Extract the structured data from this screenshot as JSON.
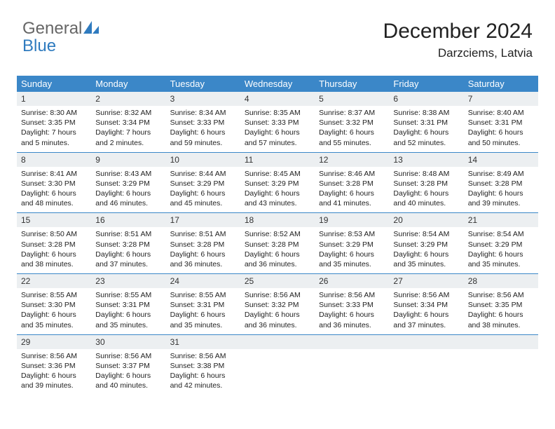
{
  "brand": {
    "word1": "General",
    "word2": "Blue"
  },
  "title": {
    "month": "December 2024",
    "location": "Darzciems, Latvia"
  },
  "colors": {
    "header_bg": "#3b87c8",
    "header_text": "#ffffff",
    "daynum_bg": "#eceff1",
    "border": "#3b87c8",
    "logo_gray": "#666666",
    "logo_blue": "#2f7bbf",
    "text": "#222222"
  },
  "weekdays": [
    "Sunday",
    "Monday",
    "Tuesday",
    "Wednesday",
    "Thursday",
    "Friday",
    "Saturday"
  ],
  "weeks": [
    [
      {
        "n": "1",
        "sr": "8:30 AM",
        "ss": "3:35 PM",
        "dl": "7 hours and 5 minutes."
      },
      {
        "n": "2",
        "sr": "8:32 AM",
        "ss": "3:34 PM",
        "dl": "7 hours and 2 minutes."
      },
      {
        "n": "3",
        "sr": "8:34 AM",
        "ss": "3:33 PM",
        "dl": "6 hours and 59 minutes."
      },
      {
        "n": "4",
        "sr": "8:35 AM",
        "ss": "3:33 PM",
        "dl": "6 hours and 57 minutes."
      },
      {
        "n": "5",
        "sr": "8:37 AM",
        "ss": "3:32 PM",
        "dl": "6 hours and 55 minutes."
      },
      {
        "n": "6",
        "sr": "8:38 AM",
        "ss": "3:31 PM",
        "dl": "6 hours and 52 minutes."
      },
      {
        "n": "7",
        "sr": "8:40 AM",
        "ss": "3:31 PM",
        "dl": "6 hours and 50 minutes."
      }
    ],
    [
      {
        "n": "8",
        "sr": "8:41 AM",
        "ss": "3:30 PM",
        "dl": "6 hours and 48 minutes."
      },
      {
        "n": "9",
        "sr": "8:43 AM",
        "ss": "3:29 PM",
        "dl": "6 hours and 46 minutes."
      },
      {
        "n": "10",
        "sr": "8:44 AM",
        "ss": "3:29 PM",
        "dl": "6 hours and 45 minutes."
      },
      {
        "n": "11",
        "sr": "8:45 AM",
        "ss": "3:29 PM",
        "dl": "6 hours and 43 minutes."
      },
      {
        "n": "12",
        "sr": "8:46 AM",
        "ss": "3:28 PM",
        "dl": "6 hours and 41 minutes."
      },
      {
        "n": "13",
        "sr": "8:48 AM",
        "ss": "3:28 PM",
        "dl": "6 hours and 40 minutes."
      },
      {
        "n": "14",
        "sr": "8:49 AM",
        "ss": "3:28 PM",
        "dl": "6 hours and 39 minutes."
      }
    ],
    [
      {
        "n": "15",
        "sr": "8:50 AM",
        "ss": "3:28 PM",
        "dl": "6 hours and 38 minutes."
      },
      {
        "n": "16",
        "sr": "8:51 AM",
        "ss": "3:28 PM",
        "dl": "6 hours and 37 minutes."
      },
      {
        "n": "17",
        "sr": "8:51 AM",
        "ss": "3:28 PM",
        "dl": "6 hours and 36 minutes."
      },
      {
        "n": "18",
        "sr": "8:52 AM",
        "ss": "3:28 PM",
        "dl": "6 hours and 36 minutes."
      },
      {
        "n": "19",
        "sr": "8:53 AM",
        "ss": "3:29 PM",
        "dl": "6 hours and 35 minutes."
      },
      {
        "n": "20",
        "sr": "8:54 AM",
        "ss": "3:29 PM",
        "dl": "6 hours and 35 minutes."
      },
      {
        "n": "21",
        "sr": "8:54 AM",
        "ss": "3:29 PM",
        "dl": "6 hours and 35 minutes."
      }
    ],
    [
      {
        "n": "22",
        "sr": "8:55 AM",
        "ss": "3:30 PM",
        "dl": "6 hours and 35 minutes."
      },
      {
        "n": "23",
        "sr": "8:55 AM",
        "ss": "3:31 PM",
        "dl": "6 hours and 35 minutes."
      },
      {
        "n": "24",
        "sr": "8:55 AM",
        "ss": "3:31 PM",
        "dl": "6 hours and 35 minutes."
      },
      {
        "n": "25",
        "sr": "8:56 AM",
        "ss": "3:32 PM",
        "dl": "6 hours and 36 minutes."
      },
      {
        "n": "26",
        "sr": "8:56 AM",
        "ss": "3:33 PM",
        "dl": "6 hours and 36 minutes."
      },
      {
        "n": "27",
        "sr": "8:56 AM",
        "ss": "3:34 PM",
        "dl": "6 hours and 37 minutes."
      },
      {
        "n": "28",
        "sr": "8:56 AM",
        "ss": "3:35 PM",
        "dl": "6 hours and 38 minutes."
      }
    ],
    [
      {
        "n": "29",
        "sr": "8:56 AM",
        "ss": "3:36 PM",
        "dl": "6 hours and 39 minutes."
      },
      {
        "n": "30",
        "sr": "8:56 AM",
        "ss": "3:37 PM",
        "dl": "6 hours and 40 minutes."
      },
      {
        "n": "31",
        "sr": "8:56 AM",
        "ss": "3:38 PM",
        "dl": "6 hours and 42 minutes."
      },
      null,
      null,
      null,
      null
    ]
  ],
  "labels": {
    "sunrise": "Sunrise: ",
    "sunset": "Sunset: ",
    "daylight": "Daylight: "
  }
}
